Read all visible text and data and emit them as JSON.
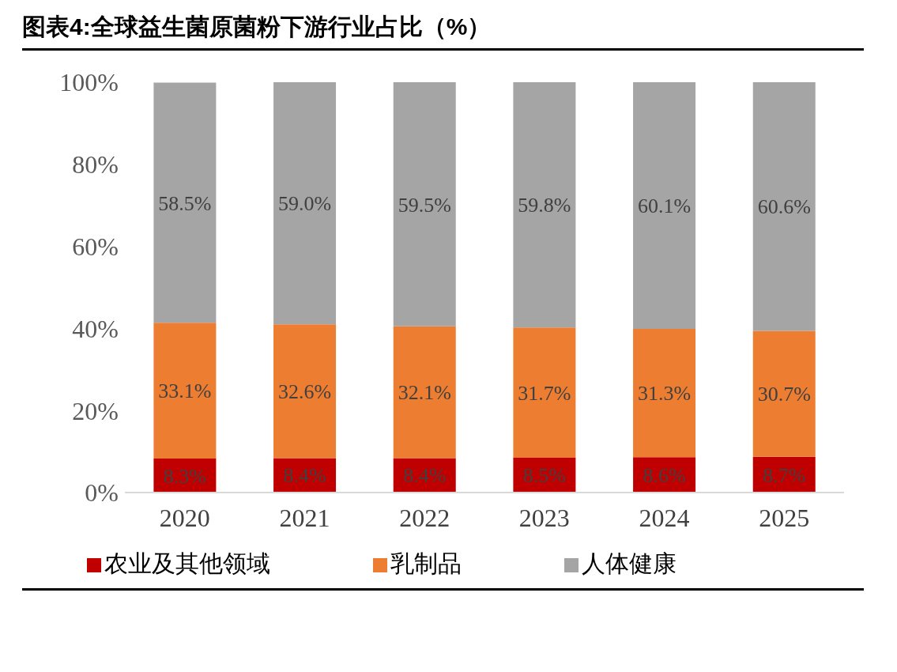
{
  "chart_data": {
    "type": "bar",
    "title": "图表4:全球益生菌原菌粉下游行业占比（%）",
    "categories": [
      "2020",
      "2021",
      "2022",
      "2023",
      "2024",
      "2025"
    ],
    "stacked": true,
    "series": [
      {
        "name": "农业及其他领域",
        "color": "#c00000",
        "values": [
          8.3,
          8.4,
          8.4,
          8.5,
          8.6,
          8.7
        ],
        "value_labels": [
          "8.3%",
          "8.4%",
          "8.4%",
          "8.5%",
          "8.6%",
          "8.7%"
        ]
      },
      {
        "name": "乳制品",
        "color": "#ed7d31",
        "values": [
          33.1,
          32.6,
          32.1,
          31.7,
          31.3,
          30.7
        ],
        "value_labels": [
          "33.1%",
          "32.6%",
          "32.1%",
          "31.7%",
          "31.3%",
          "30.7%"
        ]
      },
      {
        "name": "人体健康",
        "color": "#a5a5a5",
        "values": [
          58.5,
          59.0,
          59.5,
          59.8,
          60.1,
          60.6
        ],
        "value_labels": [
          "58.5%",
          "59.0%",
          "59.5%",
          "59.8%",
          "60.1%",
          "60.6%"
        ]
      }
    ],
    "ylim": [
      0,
      100
    ],
    "yticks": [
      {
        "value": 0,
        "label": "0%"
      },
      {
        "value": 20,
        "label": "20%"
      },
      {
        "value": 40,
        "label": "40%"
      },
      {
        "value": 60,
        "label": "60%"
      },
      {
        "value": 80,
        "label": "80%"
      },
      {
        "value": 100,
        "label": "100%"
      }
    ],
    "grid": false,
    "legend": "bottom"
  }
}
